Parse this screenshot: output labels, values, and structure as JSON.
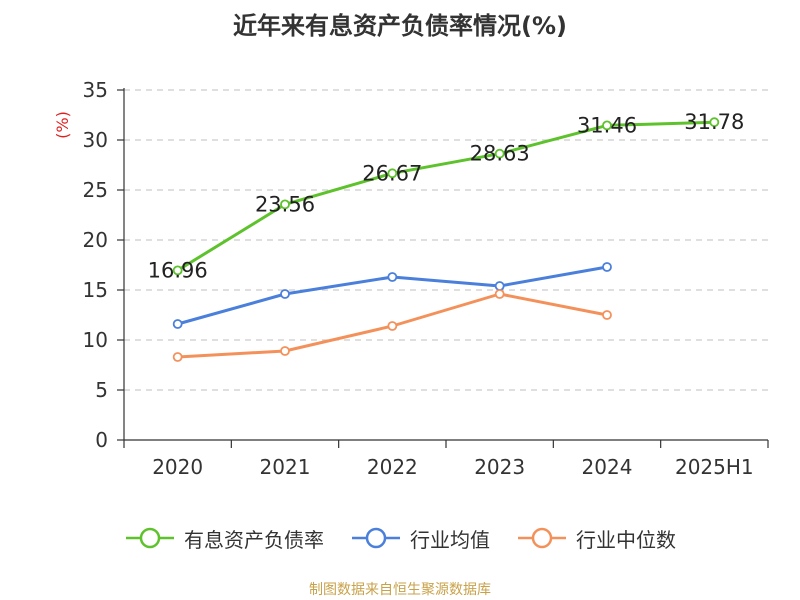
{
  "title": "近年来有息资产负债率情况(%)",
  "source": "制图数据来自恒生聚源数据库",
  "chart_data": {
    "type": "line",
    "title": "近年来有息资产负债率情况(%)",
    "ylabel": "(%)",
    "xlabel": "",
    "categories": [
      "2020",
      "2021",
      "2022",
      "2023",
      "2024",
      "2025H1"
    ],
    "ylim": [
      0,
      35
    ],
    "yticks": [
      0,
      5,
      10,
      15,
      20,
      25,
      30,
      35
    ],
    "grid": "horizontal dashed",
    "legend_position": "bottom",
    "series": [
      {
        "name": "有息资产负债率",
        "color": "#5ec22c",
        "show_labels": true,
        "values": [
          16.96,
          23.56,
          26.67,
          28.63,
          31.46,
          31.78
        ],
        "labels": [
          "16.96",
          "23.56",
          "26.67",
          "28.63",
          "31.46",
          "31.78"
        ]
      },
      {
        "name": "行业均值",
        "color": "#4a7fdb",
        "show_labels": false,
        "values": [
          11.6,
          14.6,
          16.3,
          15.4,
          17.3,
          null
        ]
      },
      {
        "name": "行业中位数",
        "color": "#f4915a",
        "show_labels": false,
        "values": [
          8.3,
          8.9,
          11.4,
          14.6,
          12.5,
          null
        ]
      }
    ]
  }
}
